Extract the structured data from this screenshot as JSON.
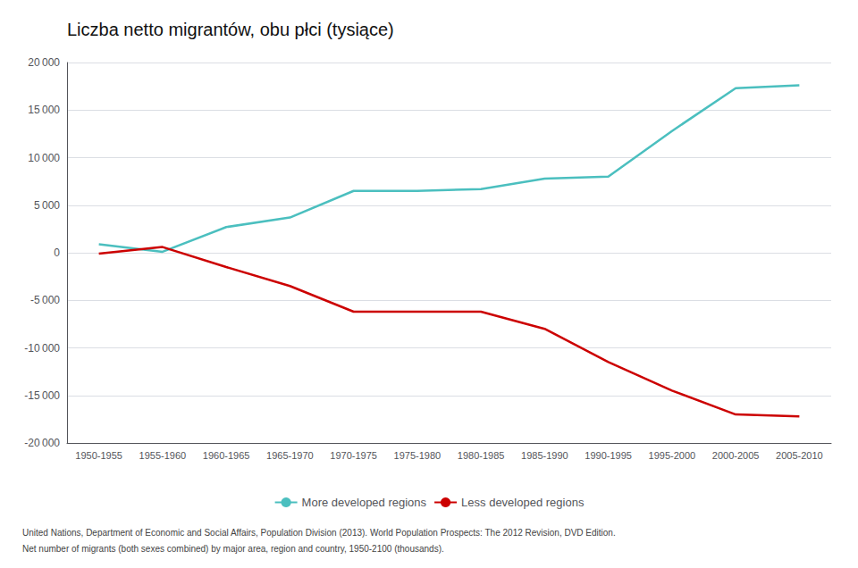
{
  "chart_data": {
    "type": "line",
    "title": "Liczba netto migrantów, obu płci (tysiące)",
    "categories": [
      "1950-1955",
      "1955-1960",
      "1960-1965",
      "1965-1970",
      "1970-1975",
      "1975-1980",
      "1980-1985",
      "1985-1990",
      "1990-1995",
      "1995-2000",
      "2000-2005",
      "2005-2010"
    ],
    "series": [
      {
        "name": "More developed regions",
        "color": "#4BBFBF",
        "values": [
          900,
          100,
          2700,
          3700,
          6500,
          6500,
          6700,
          7800,
          8000,
          12800,
          17300,
          17600
        ]
      },
      {
        "name": "Less developed regions",
        "color": "#CC0000",
        "values": [
          -100,
          600,
          -1500,
          -3500,
          -6200,
          -6200,
          -6200,
          -8000,
          -11500,
          -14500,
          -17000,
          -17200
        ]
      }
    ],
    "ylim": [
      -20000,
      20000
    ],
    "yticks": [
      {
        "value": -20000,
        "label": "-20 000"
      },
      {
        "value": -15000,
        "label": "-15 000"
      },
      {
        "value": -10000,
        "label": "-10 000"
      },
      {
        "value": -5000,
        "label": "-5 000"
      },
      0,
      {
        "value": 5000,
        "label": "5 000"
      },
      {
        "value": 10000,
        "label": "10 000"
      },
      {
        "value": 15000,
        "label": "15 000"
      },
      {
        "value": 20000,
        "label": "20 000"
      }
    ],
    "grid": true,
    "legend": "bottom",
    "annotations": [
      "United Nations, Department of Economic and Social Affairs, Population Division (2013). World Population Prospects: The 2012 Revision, DVD Edition.",
      "Net number of migrants (both sexes combined) by major area, region and country, 1950-2100 (thousands)."
    ]
  }
}
